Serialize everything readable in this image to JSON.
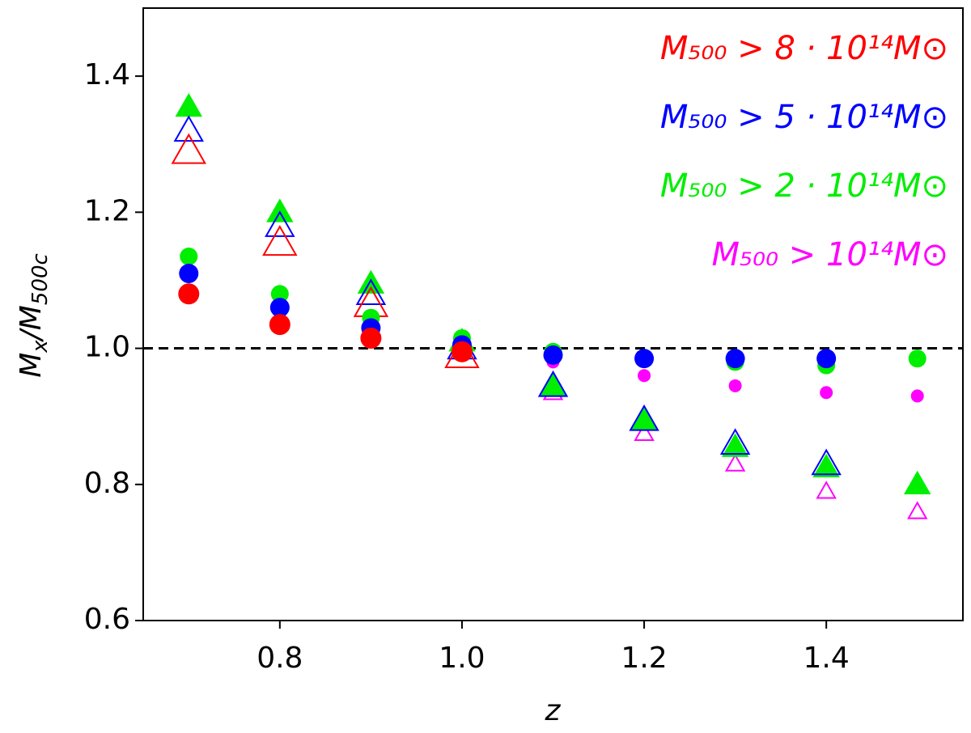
{
  "chart_data": {
    "type": "scatter",
    "xlabel": "z",
    "ylabel": [
      "M",
      "x",
      "/M",
      "500c"
    ],
    "x": [
      0.7,
      0.8,
      0.9,
      1.0,
      1.1,
      1.2,
      1.3,
      1.4,
      1.5
    ],
    "xlim": [
      0.65,
      1.55
    ],
    "ylim": [
      0.6,
      1.5
    ],
    "xticks": [
      0.8,
      {
        "value": 1,
        "label": "1.0"
      },
      1.2,
      1.4
    ],
    "yticks": [
      0.6,
      0.8,
      {
        "value": 1,
        "label": "1.0"
      },
      1.2,
      1.4
    ],
    "hline": 1,
    "legend": "upper right",
    "series": [
      {
        "name": "M₅₀₀ > 8 · 10¹⁴M⊙",
        "color": "#ff0000",
        "triangle_filled": false,
        "values": [
          1.08,
          1.035,
          1.015,
          0.995,
          null,
          null,
          null,
          null,
          null
        ],
        "triangle_values": [
          1.29,
          1.155,
          1.065,
          0.99,
          null,
          null,
          null,
          null,
          null
        ]
      },
      {
        "name": "M₅₀₀ > 5 · 10¹⁴M⊙",
        "color": "#0000ff",
        "triangle_filled": false,
        "values": [
          1.11,
          1.06,
          1.03,
          1.005,
          0.99,
          0.985,
          0.985,
          0.985,
          null
        ],
        "triangle_values": [
          1.32,
          1.18,
          1.08,
          1.0,
          0.945,
          0.895,
          0.86,
          0.83,
          null
        ]
      },
      {
        "name": "M₅₀₀ > 2 · 10¹⁴M⊙",
        "color": "#00ee00",
        "triangle_filled": true,
        "values": [
          1.135,
          1.08,
          1.045,
          1.015,
          0.995,
          0.985,
          0.98,
          0.975,
          0.985
        ],
        "triangle_values": [
          1.355,
          1.2,
          1.095,
          1.01,
          0.945,
          0.895,
          0.855,
          0.825,
          0.8
        ]
      },
      {
        "name": "M₅₀₀ > 10¹⁴M⊙",
        "color": "#ff00ff",
        "triangle_filled": false,
        "values": [
          null,
          null,
          null,
          null,
          0.98,
          0.96,
          0.945,
          0.935,
          0.93
        ],
        "triangle_values": [
          null,
          null,
          null,
          null,
          0.935,
          0.875,
          0.83,
          0.79,
          0.76
        ]
      }
    ]
  }
}
